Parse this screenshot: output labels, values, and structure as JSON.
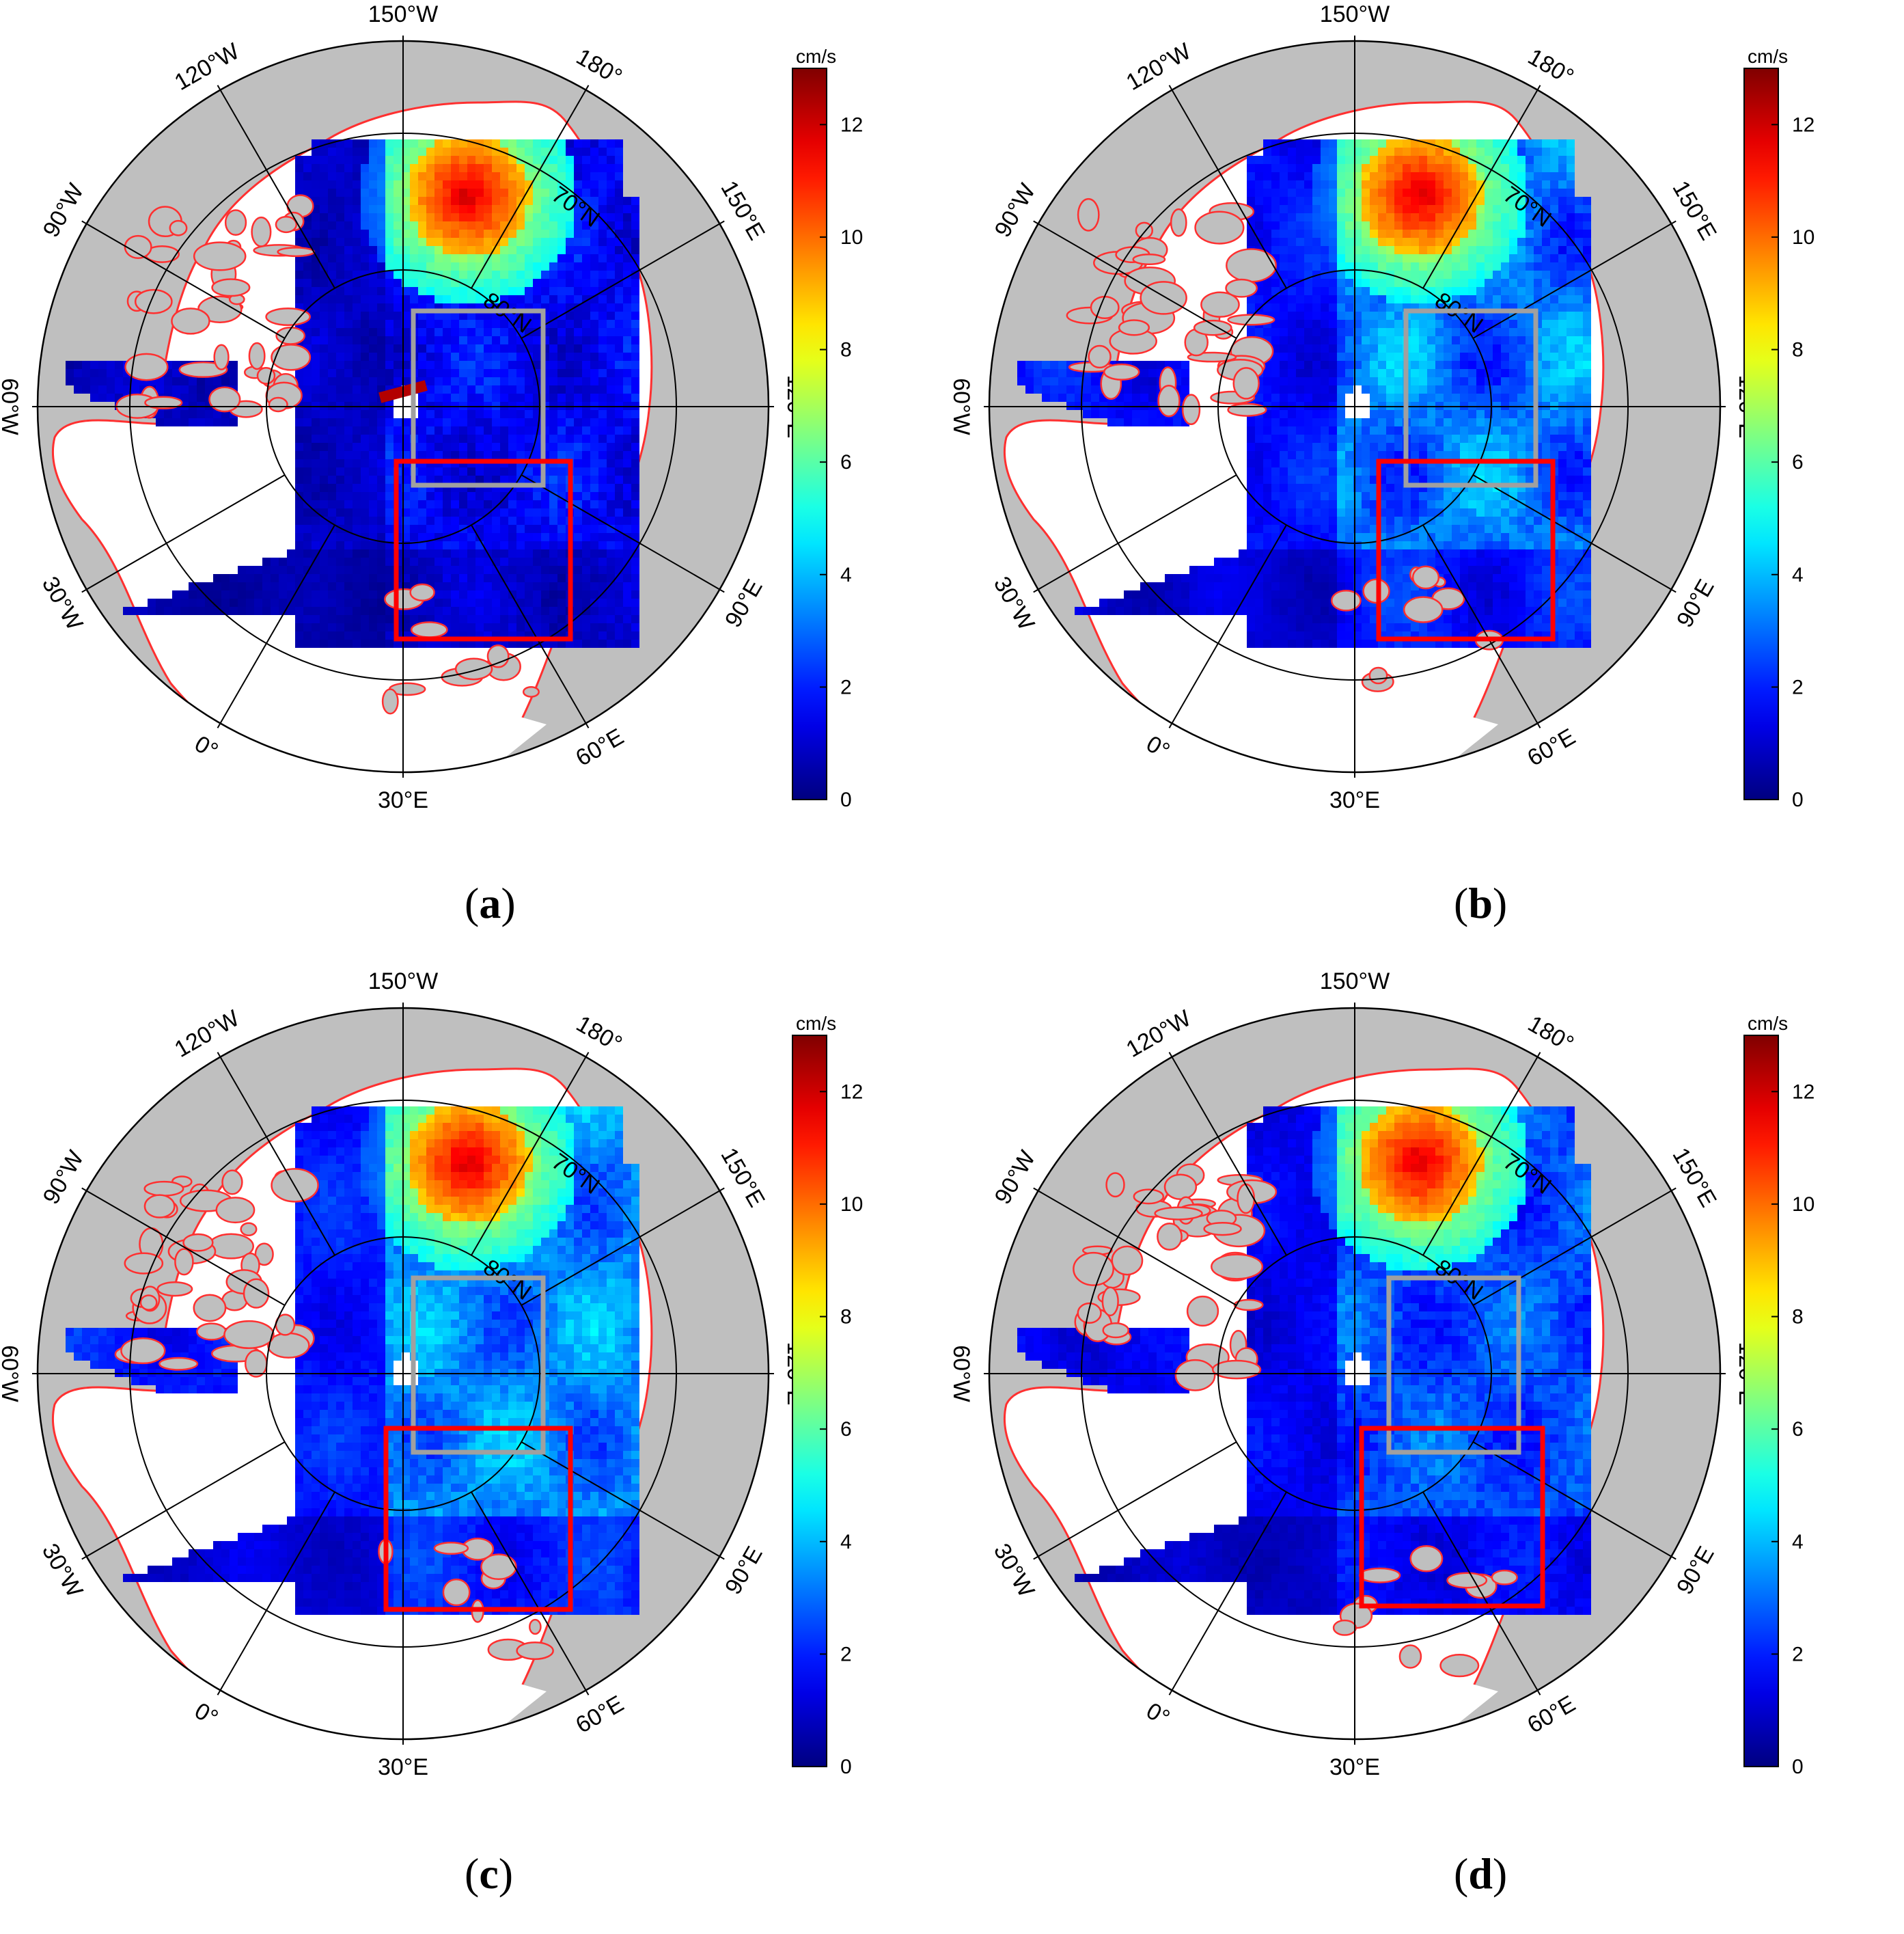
{
  "figure": {
    "colorbar": {
      "unit": "cm/s",
      "ticks": [
        "0",
        "2",
        "4",
        "6",
        "8",
        "10",
        "12"
      ],
      "range": [
        0,
        13
      ],
      "colormap": "jet"
    },
    "graticule_labels": {
      "top": "150°W",
      "w120": "120°W",
      "e180": "180°",
      "w90": "90°W",
      "e150": "150°E",
      "w60": "60°W",
      "e120": "120°E",
      "w30": "30°W",
      "e90": "90°E",
      "zero": "0°",
      "e60": "60°E",
      "bottom": "30°E",
      "lat70": "70°N",
      "lat80": "80°N"
    },
    "panels": [
      {
        "id": "a",
        "label": "a"
      },
      {
        "id": "b",
        "label": "b"
      },
      {
        "id": "c",
        "label": "c"
      },
      {
        "id": "d",
        "label": "d"
      }
    ],
    "box_colors": {
      "gray": "#a0a0a0",
      "red": "#ff0000"
    },
    "land_color": "#bfbfbf",
    "coast_color": "#ff3030"
  }
}
